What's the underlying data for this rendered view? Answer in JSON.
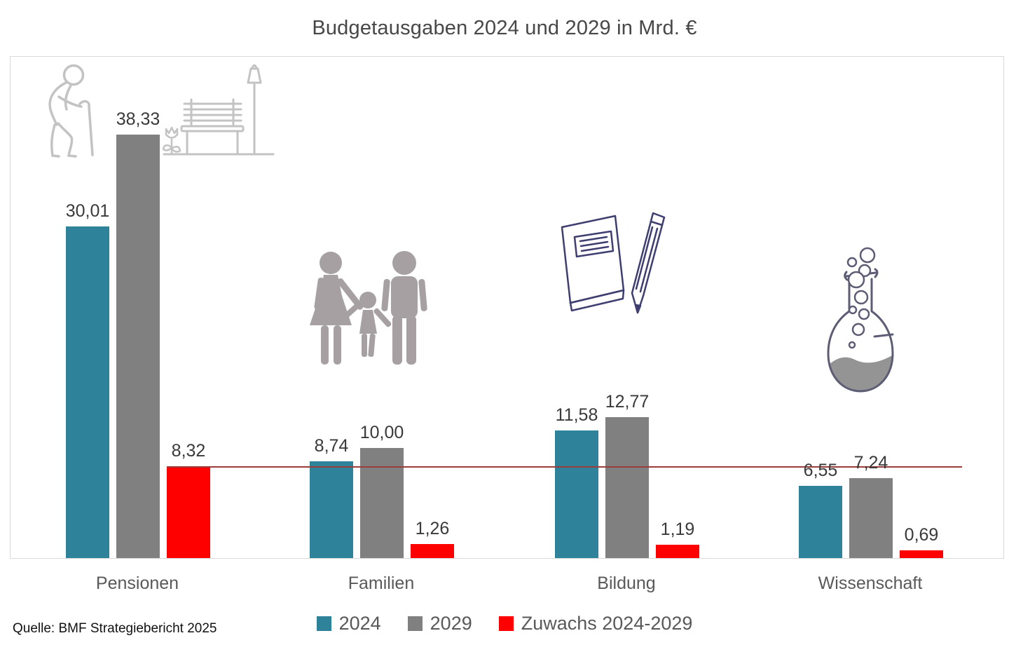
{
  "title": "Budgetausgaben 2024 und 2029 in Mrd. €",
  "source": "Quelle: BMF Strategiebericht 2025",
  "chart_data": {
    "type": "bar",
    "title": "Budgetausgaben 2024 und 2029 in Mrd. €",
    "categories": [
      "Pensionen",
      "Familien",
      "Bildung",
      "Wissenschaft"
    ],
    "series": [
      {
        "name": "2024",
        "color": "#2E839B",
        "values": [
          30.01,
          8.74,
          11.58,
          6.55
        ],
        "labels": [
          "30,01",
          "8,74",
          "11,58",
          "6,55"
        ]
      },
      {
        "name": "2029",
        "color": "#808080",
        "values": [
          38.33,
          10.0,
          12.77,
          7.24
        ],
        "labels": [
          "38,33",
          "10,00",
          "12,77",
          "7,24"
        ]
      },
      {
        "name": "Zuwachs 2024-2029",
        "color": "#FF0000",
        "values": [
          8.32,
          1.26,
          1.19,
          0.69
        ],
        "labels": [
          "8,32",
          "1,26",
          "1,19",
          "0,69"
        ]
      }
    ],
    "xlabel": "",
    "ylabel": "",
    "ylim": [
      0,
      45.4
    ],
    "grid": false,
    "axis_visible": false,
    "legend_position": "bottom",
    "threshold_line": {
      "value": 8.32,
      "color": "#9A3E3B"
    },
    "decimal_separator": "comma",
    "unit": "Mrd. €"
  },
  "icons": {
    "pensionen": [
      "elderly-person-icon",
      "flower-icon",
      "park-bench-icon",
      "street-lamp-icon"
    ],
    "familien": [
      "family-icon"
    ],
    "bildung": [
      "notebook-icon",
      "pencil-icon"
    ],
    "wissenschaft": [
      "flask-icon"
    ]
  },
  "colors": {
    "plot_border": "#DADADA",
    "value_text": "#3A3A3A",
    "category_text": "#595959",
    "legend_text": "#595959",
    "icon_outline_gray": "#C3C3C3",
    "icon_silhouette": "#A7A0A3",
    "icon_navy": "#3E3E70",
    "icon_flask_outline": "#5C5C74",
    "icon_flask_liquid": "#949494"
  }
}
